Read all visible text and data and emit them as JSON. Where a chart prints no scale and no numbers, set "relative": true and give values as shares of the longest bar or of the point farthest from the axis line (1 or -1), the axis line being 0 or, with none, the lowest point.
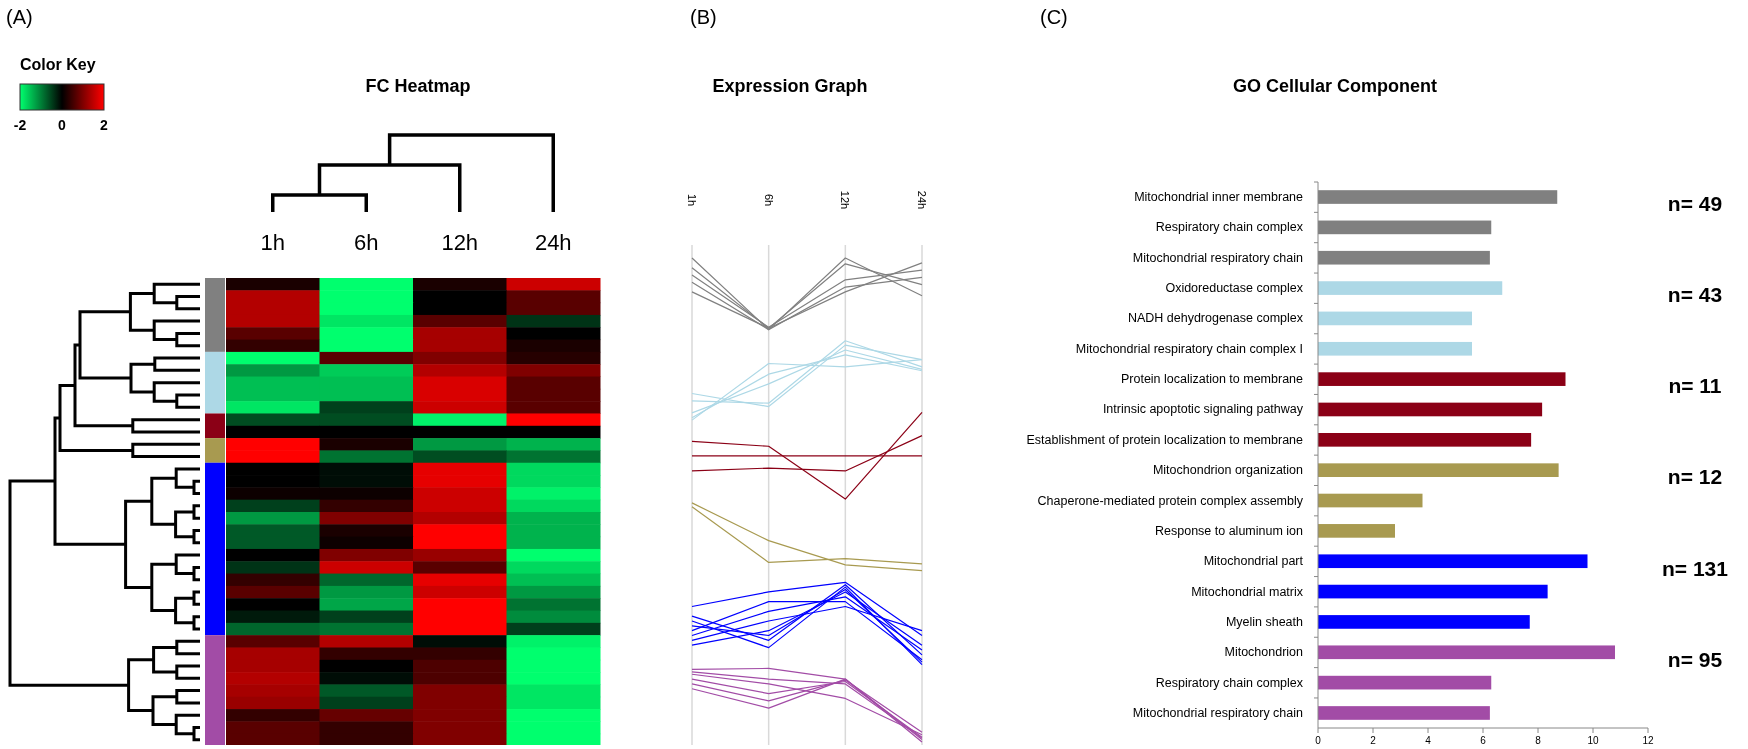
{
  "chart_data": [
    {
      "type": "heatmap",
      "title": "FC Heatmap",
      "clabel": "Color Key",
      "clim": [
        -2,
        2
      ],
      "cticks": [
        -2,
        0,
        2
      ],
      "annotations": [
        "(A)"
      ],
      "categories": [
        "1h",
        "6h",
        "12h",
        "24h"
      ],
      "y_categories": [
        null,
        null,
        null,
        null,
        null,
        null,
        null,
        null,
        null,
        null,
        null,
        null,
        null,
        null,
        null,
        null,
        null,
        null,
        null,
        null,
        null,
        null,
        null,
        null,
        null,
        null,
        null,
        null,
        null,
        null,
        null,
        null,
        null,
        null,
        null,
        null,
        null,
        null
      ],
      "cells": [
        [
          0.2,
          -2,
          0.2,
          1.6
        ],
        [
          1.4,
          -2,
          0,
          0.7
        ],
        [
          1.4,
          -2,
          0,
          0.7
        ],
        [
          1.4,
          -1.8,
          0.7,
          -0.4
        ],
        [
          0.7,
          -2,
          1.3,
          0
        ],
        [
          0.4,
          -2,
          1.3,
          0.2
        ],
        [
          -2,
          0.7,
          1,
          0.3
        ],
        [
          -1.2,
          -1.6,
          1.4,
          1
        ],
        [
          -1.5,
          -1.5,
          1.7,
          0.7
        ],
        [
          -1.5,
          -1.5,
          1.7,
          0.7
        ],
        [
          -1.8,
          -0.5,
          1.6,
          0.7
        ],
        [
          -0.6,
          -0.6,
          -1.9,
          2
        ],
        [
          0,
          0,
          0,
          0
        ],
        [
          2,
          0.2,
          -1.2,
          -1.4
        ],
        [
          2,
          -0.9,
          -0.6,
          -0.9
        ],
        [
          0,
          -0.1,
          1.8,
          -1.7
        ],
        [
          0,
          -0.1,
          1.8,
          -1.7
        ],
        [
          0.1,
          0.1,
          1.6,
          -1.9
        ],
        [
          -0.5,
          0.4,
          1.6,
          -1.7
        ],
        [
          -1.2,
          1,
          1.4,
          -1.4
        ],
        [
          -0.7,
          0.2,
          2,
          -1.4
        ],
        [
          -0.7,
          0.1,
          2,
          -1.4
        ],
        [
          0,
          1,
          1.2,
          -2
        ],
        [
          -0.4,
          1.6,
          0.7,
          -1.7
        ],
        [
          0.4,
          -0.8,
          1.8,
          -1.5
        ],
        [
          0.7,
          -1.2,
          1.6,
          -1.2
        ],
        [
          0,
          -1.3,
          2,
          -0.9
        ],
        [
          -0.2,
          -0.5,
          2,
          -1.1
        ],
        [
          -0.8,
          -0.9,
          2,
          -0.5
        ],
        [
          0.7,
          1.4,
          -0.1,
          -1.9
        ],
        [
          1.3,
          0.4,
          0.4,
          -2
        ],
        [
          1.3,
          0,
          0.6,
          -2
        ],
        [
          1.4,
          -0.1,
          0.6,
          -2
        ],
        [
          1.3,
          -0.7,
          1,
          -1.8
        ],
        [
          1.2,
          -0.5,
          1,
          -1.8
        ],
        [
          0.4,
          0.8,
          1,
          -2
        ],
        [
          0.7,
          0.4,
          1,
          -2
        ],
        [
          0.7,
          0.4,
          1,
          -2
        ]
      ]
    },
    {
      "type": "line",
      "title": "Expression Graph",
      "annotations": [
        "(B)"
      ],
      "categories": [
        "1h",
        "6h",
        "12h",
        "24h"
      ],
      "relative": true,
      "grid": "x",
      "tick_labels": "x",
      "series": [
        {
          "color": "#808080",
          "values": [
            1,
            0.852,
            1,
            0.922
          ]
        },
        {
          "color": "#808080",
          "values": [
            0.98,
            0.855,
            0.988,
            0.945
          ]
        },
        {
          "color": "#808080",
          "values": [
            0.965,
            0.857,
            0.955,
            0.975
          ]
        },
        {
          "color": "#808080",
          "values": [
            0.95,
            0.852,
            0.94,
            0.96
          ]
        },
        {
          "color": "#808080",
          "values": [
            0.93,
            0.855,
            0.93,
            0.99
          ]
        },
        {
          "color": "#add8e6",
          "values": [
            0.72,
            0.693,
            0.82,
            0.79
          ]
        },
        {
          "color": "#add8e6",
          "values": [
            0.705,
            0.7,
            0.829,
            0.775
          ]
        },
        {
          "color": "#add8e6",
          "values": [
            0.665,
            0.782,
            0.775,
            0.79
          ]
        },
        {
          "color": "#add8e6",
          "values": [
            0.68,
            0.74,
            0.81,
            0.77
          ]
        },
        {
          "color": "#add8e6",
          "values": [
            0.67,
            0.76,
            0.8,
            0.767
          ]
        },
        {
          "color": "#8b0016",
          "values": [
            0.621,
            0.611,
            0.502,
            0.681
          ]
        },
        {
          "color": "#8b0016",
          "values": [
            0.591,
            0.591,
            0.591,
            0.591
          ]
        },
        {
          "color": "#8b0016",
          "values": [
            0.56,
            0.566,
            0.56,
            0.633
          ]
        },
        {
          "color": "#a89a50",
          "values": [
            0.494,
            0.416,
            0.366,
            0.354
          ]
        },
        {
          "color": "#a89a50",
          "values": [
            0.486,
            0.371,
            0.379,
            0.368
          ]
        },
        {
          "color": "#0000ff",
          "values": [
            0.28,
            0.31,
            0.33,
            0.22
          ]
        },
        {
          "color": "#0000ff",
          "values": [
            0.25,
            0.195,
            0.32,
            0.16
          ]
        },
        {
          "color": "#0000ff",
          "values": [
            0.22,
            0.27,
            0.3,
            0.19
          ]
        },
        {
          "color": "#0000ff",
          "values": [
            0.2,
            0.23,
            0.31,
            0.2
          ]
        },
        {
          "color": "#0000ff",
          "values": [
            0.26,
            0.21,
            0.325,
            0.18
          ]
        },
        {
          "color": "#0000ff",
          "values": [
            0.23,
            0.29,
            0.29,
            0.17
          ]
        },
        {
          "color": "#0000ff",
          "values": [
            0.21,
            0.25,
            0.28,
            0.23
          ]
        },
        {
          "color": "#0000ff",
          "values": [
            0.24,
            0.22,
            0.315,
            0.165
          ]
        },
        {
          "color": "#a24ca6",
          "values": [
            0.15,
            0.152,
            0.13,
            0
          ]
        },
        {
          "color": "#a24ca6",
          "values": [
            0.13,
            0.1,
            0.125,
            0.01
          ]
        },
        {
          "color": "#a24ca6",
          "values": [
            0.11,
            0.07,
            0.13,
            0.005
          ]
        },
        {
          "color": "#a24ca6",
          "values": [
            0.14,
            0.12,
            0.09,
            0.015
          ]
        },
        {
          "color": "#a24ca6",
          "values": [
            0.12,
            0.085,
            0.128,
            0.02
          ]
        },
        {
          "color": "#a24ca6",
          "values": [
            0.145,
            0.13,
            0.12,
            0.008
          ]
        }
      ]
    },
    {
      "type": "bar",
      "orientation": "horizontal",
      "title": "GO Cellular Component",
      "annotations": [
        "(C)",
        "n= 49",
        "n= 43",
        "n= 11",
        "n= 12",
        "n= 131",
        "n= 95"
      ],
      "categories": [
        "Mitochondrial inner membrane",
        "Respiratory chain complex",
        "Mitochondrial respiratory chain",
        "Oxidoreductase complex",
        "NADH dehydrogenase complex",
        "Mitochondrial respiratory chain complex I",
        "Protein localization to membrane",
        "Intrinsic apoptotic signaling pathway",
        "Establishment of protein localization to membrane",
        "Mitochondrion organization",
        "Chaperone-mediated protein complex assembly",
        "Response to aluminum ion",
        "Mitochondrial part",
        "Mitochondrial matrix",
        "Myelin sheath",
        "Mitochondrion",
        "Respiratory chain complex",
        "Mitochondrial respiratory chain"
      ],
      "values": [
        8.7,
        6.3,
        6.25,
        6.7,
        5.6,
        5.6,
        9,
        8.15,
        7.75,
        8.75,
        3.8,
        2.8,
        9.8,
        8.35,
        7.7,
        10.8,
        6.3,
        6.25
      ],
      "colors": [
        "#808080",
        "#808080",
        "#808080",
        "#add8e6",
        "#add8e6",
        "#add8e6",
        "#8b0016",
        "#8b0016",
        "#8b0016",
        "#a89a50",
        "#a89a50",
        "#a89a50",
        "#0000ff",
        "#0000ff",
        "#0000ff",
        "#a24ca6",
        "#a24ca6",
        "#a24ca6"
      ],
      "xlim": [
        0,
        12
      ],
      "xticks": [
        0,
        2,
        4,
        6,
        8,
        10,
        12
      ],
      "grid": false
    }
  ]
}
